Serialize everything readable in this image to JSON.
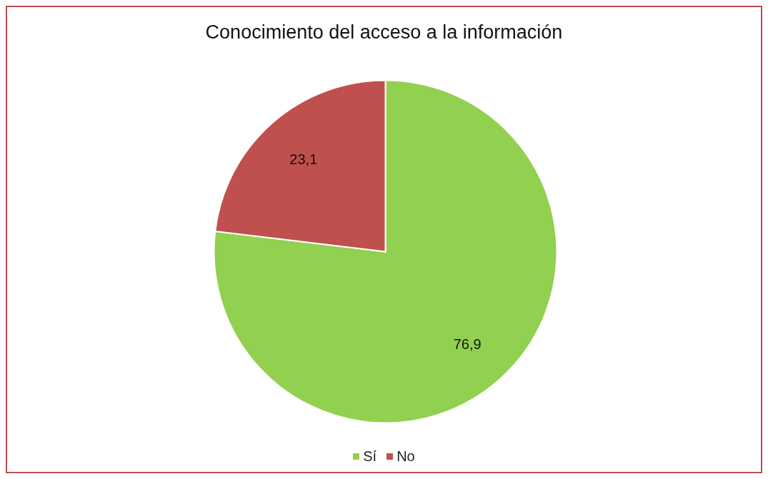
{
  "chart_data": {
    "type": "pie",
    "title": "Conocimiento del acceso a la información",
    "categories": [
      "Sí",
      "No"
    ],
    "values": [
      76.9,
      23.1
    ],
    "colors": [
      "#92d050",
      "#c0504d"
    ],
    "value_labels": [
      "76,9",
      "23,1"
    ],
    "legend": "bottom"
  }
}
